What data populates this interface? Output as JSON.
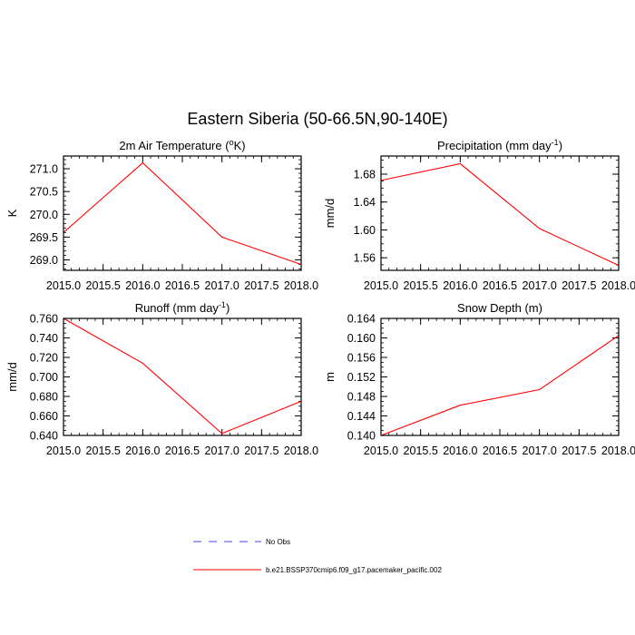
{
  "figure": {
    "title": "Eastern Siberia (50-66.5N,90-140E)"
  },
  "legend": {
    "placement": "bottom",
    "entries": [
      {
        "label": "No Obs",
        "color": "#4040ff",
        "style": "dashed"
      },
      {
        "label": "b.e21.BSSP370cmip6.f09_g17.pacemaker_pacific.002",
        "color": "#ff0000",
        "style": "solid"
      }
    ]
  },
  "chart_data": [
    {
      "type": "line",
      "title": "2m Air Temperature (",
      "title_sup": "o",
      "title_tail": "K)",
      "ylabel": "K",
      "x": [
        2015.0,
        2016.0,
        2017.0,
        2018.0
      ],
      "series": [
        {
          "name": "b.e21.BSSP370cmip6.f09_g17.pacemaker_pacific.002",
          "color": "#ff0000",
          "values": [
            269.6,
            271.13,
            269.5,
            268.9
          ]
        }
      ],
      "xlim": [
        2015.0,
        2018.0
      ],
      "ylim": [
        268.77,
        271.28
      ],
      "xticks": [
        2015.0,
        2015.5,
        2016.0,
        2016.5,
        2017.0,
        2017.5,
        2018.0
      ],
      "xtick_labels": [
        "2015.0",
        "2015.5",
        "2016.0",
        "2016.5",
        "2017.0",
        "2017.5",
        "2018.0"
      ],
      "yticks": [
        269.0,
        269.5,
        270.0,
        270.5,
        271.0
      ],
      "ytick_labels": [
        "269.0",
        "269.5",
        "270.0",
        "270.5",
        "271.0"
      ],
      "yminor_step": 0.1
    },
    {
      "type": "line",
      "title": "Precipitation (mm day",
      "title_sup": "-1",
      "title_tail": ")",
      "ylabel": "mm/d",
      "x": [
        2015.0,
        2016.0,
        2017.0,
        2018.0
      ],
      "series": [
        {
          "name": "b.e21.BSSP370cmip6.f09_g17.pacemaker_pacific.002",
          "color": "#ff0000",
          "values": [
            1.671,
            1.695,
            1.602,
            1.549
          ]
        }
      ],
      "xlim": [
        2015.0,
        2018.0
      ],
      "ylim": [
        1.542,
        1.706
      ],
      "xticks": [
        2015.0,
        2015.5,
        2016.0,
        2016.5,
        2017.0,
        2017.5,
        2018.0
      ],
      "xtick_labels": [
        "2015.0",
        "2015.5",
        "2016.0",
        "2016.5",
        "2017.0",
        "2017.5",
        "2018.0"
      ],
      "yticks": [
        1.56,
        1.6,
        1.64,
        1.68
      ],
      "ytick_labels": [
        "1.56",
        "1.60",
        "1.64",
        "1.68"
      ],
      "yminor_step": 0.01
    },
    {
      "type": "line",
      "title": "Runoff (mm day",
      "title_sup": "-1",
      "title_tail": ")",
      "ylabel": "mm/d",
      "x": [
        2015.0,
        2016.0,
        2017.0,
        2018.0
      ],
      "series": [
        {
          "name": "b.e21.BSSP370cmip6.f09_g17.pacemaker_pacific.002",
          "color": "#ff0000",
          "values": [
            0.76,
            0.714,
            0.642,
            0.675
          ]
        }
      ],
      "xlim": [
        2015.0,
        2018.0
      ],
      "ylim": [
        0.64,
        0.76
      ],
      "xticks": [
        2015.0,
        2015.5,
        2016.0,
        2016.5,
        2017.0,
        2017.5,
        2018.0
      ],
      "xtick_labels": [
        "2015.0",
        "2015.5",
        "2016.0",
        "2016.5",
        "2017.0",
        "2017.5",
        "2018.0"
      ],
      "yticks": [
        0.64,
        0.66,
        0.68,
        0.7,
        0.72,
        0.74,
        0.76
      ],
      "ytick_labels": [
        "0.640",
        "0.660",
        "0.680",
        "0.700",
        "0.720",
        "0.740",
        "0.760"
      ],
      "yminor_step": 0.005
    },
    {
      "type": "line",
      "title": "Snow Depth (m)",
      "title_sup": "",
      "title_tail": "",
      "ylabel": "m",
      "x": [
        2015.0,
        2016.0,
        2017.0,
        2018.0
      ],
      "series": [
        {
          "name": "b.e21.BSSP370cmip6.f09_g17.pacemaker_pacific.002",
          "color": "#ff0000",
          "values": [
            0.14,
            0.1462,
            0.1494,
            0.1605
          ]
        }
      ],
      "xlim": [
        2015.0,
        2018.0
      ],
      "ylim": [
        0.14,
        0.164
      ],
      "xticks": [
        2015.0,
        2015.5,
        2016.0,
        2016.5,
        2017.0,
        2017.5,
        2018.0
      ],
      "xtick_labels": [
        "2015.0",
        "2015.5",
        "2016.0",
        "2016.5",
        "2017.0",
        "2017.5",
        "2018.0"
      ],
      "yticks": [
        0.14,
        0.144,
        0.148,
        0.152,
        0.156,
        0.16,
        0.164
      ],
      "ytick_labels": [
        "0.140",
        "0.144",
        "0.148",
        "0.152",
        "0.156",
        "0.160",
        "0.164"
      ],
      "yminor_step": 0.001
    }
  ]
}
